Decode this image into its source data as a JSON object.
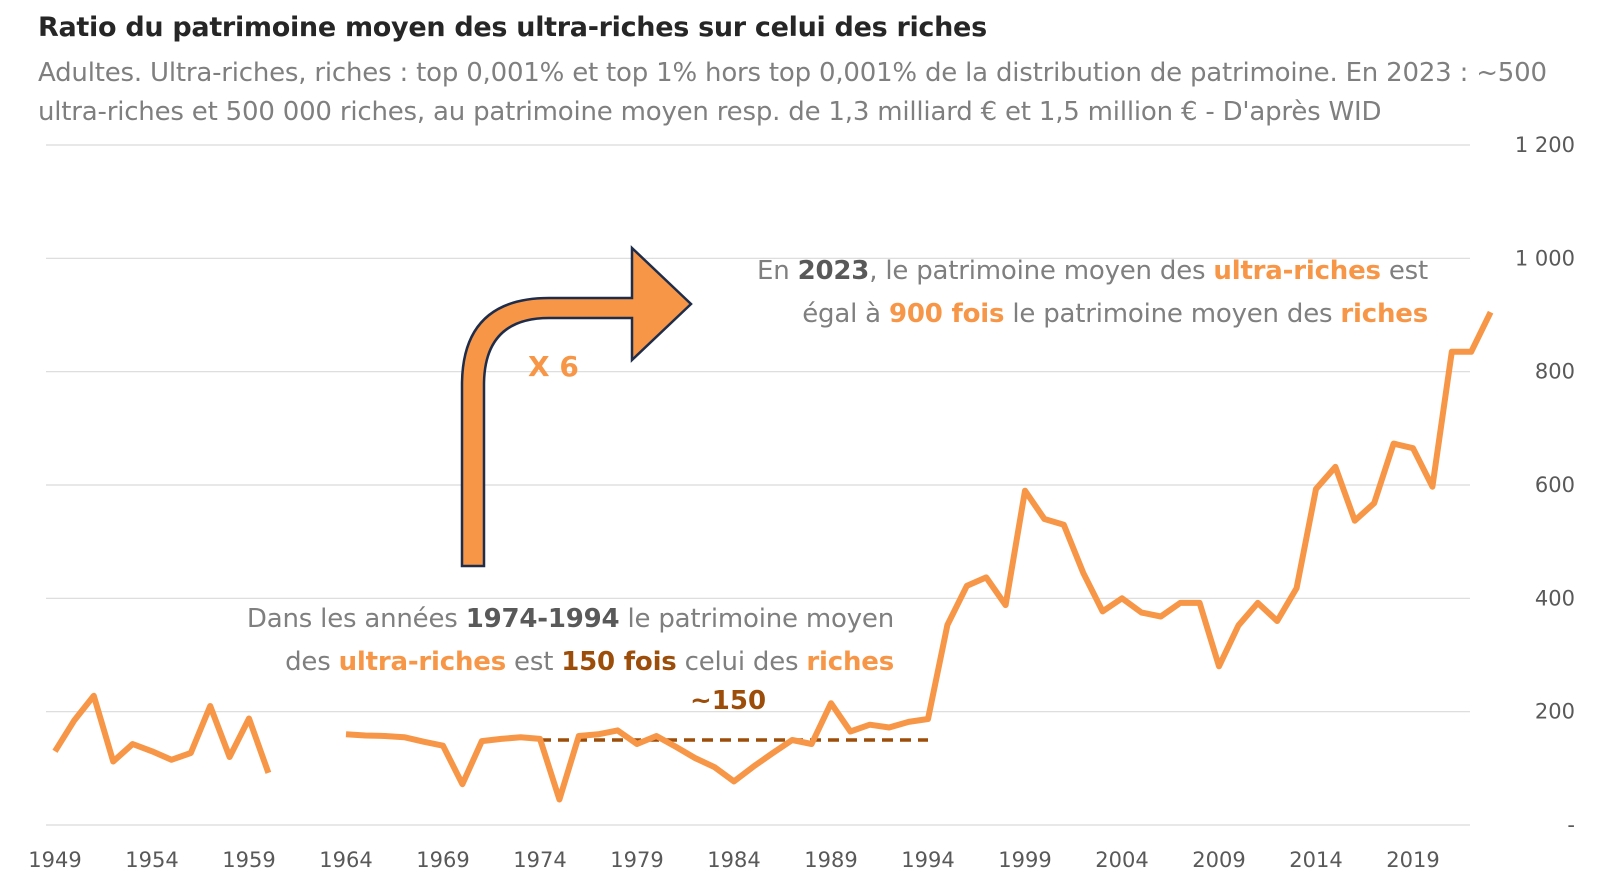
{
  "title": "Ratio du patrimoine moyen des ultra-riches sur celui des riches",
  "subtitle": "Adultes. Ultra-riches, riches : top 0,001% et top 1% hors top 0,001% de la distribution de patrimoine. En 2023 : ~500 ultra-riches et 500 000 riches, au patrimoine moyen resp. de 1,3 milliard € et 1,5 million €  - D'après WID",
  "annotation_top": {
    "p1": "En ",
    "year": "2023",
    "p2": ", le patrimoine moyen des ",
    "ultra": "ultra-riches",
    "p3": " est",
    "p4": "égal à ",
    "fois": "900 fois",
    "p5": " le patrimoine moyen des ",
    "riches": "riches"
  },
  "annotation_bottom": {
    "p1": "Dans les années ",
    "years": "1974-1994",
    "p2": " le patrimoine moyen",
    "p3": "des ",
    "ultra": "ultra-riches",
    "p4": " est ",
    "fois": "150 fois",
    "p5": " celui des ",
    "riches": "riches"
  },
  "approx_label": "~150",
  "multiplier_label": "X 6",
  "colors": {
    "series": "#f79646",
    "reference": "#9c4d0a",
    "grid": "#d9d9d9",
    "arrow_outline": "#1f2d4a"
  },
  "chart_data": {
    "type": "line",
    "y_ticks": [
      "-",
      "200",
      "400",
      "600",
      "800",
      "1 000",
      "1 200"
    ],
    "y_tick_values": [
      0,
      200,
      400,
      600,
      800,
      1000,
      1200
    ],
    "x_ticks": [
      "1949",
      "1954",
      "1959",
      "1964",
      "1969",
      "1974",
      "1979",
      "1984",
      "1989",
      "1994",
      "1999",
      "2004",
      "2009",
      "2014",
      "2019"
    ],
    "xlim": [
      1949,
      2023
    ],
    "ylim": [
      0,
      1200
    ],
    "grid": true,
    "series": [
      {
        "x": [
          1949,
          1950,
          1951,
          1952,
          1953,
          1954,
          1955,
          1956,
          1957,
          1958,
          1959,
          1960,
          1961,
          1962,
          1963,
          1964,
          1965,
          1966,
          1967,
          1968,
          1969,
          1970,
          1971,
          1972,
          1973,
          1974,
          1975,
          1976,
          1977,
          1978,
          1979,
          1980,
          1981,
          1982,
          1983,
          1984,
          1985,
          1986,
          1987,
          1988,
          1989,
          1990,
          1991,
          1992,
          1993,
          1994,
          1995,
          1996,
          1997,
          1998,
          1999,
          2000,
          2001,
          2002,
          2003,
          2004,
          2005,
          2006,
          2007,
          2008,
          2009,
          2010,
          2011,
          2012,
          2013,
          2014,
          2015,
          2016,
          2017,
          2018,
          2019,
          2020,
          2021,
          2022,
          2023
        ],
        "values": [
          130,
          185,
          228,
          112,
          143,
          130,
          115,
          127,
          210,
          120,
          188,
          92,
          null,
          null,
          null,
          160,
          158,
          157,
          155,
          147,
          140,
          72,
          148,
          152,
          155,
          152,
          45,
          157,
          160,
          167,
          143,
          157,
          138,
          118,
          102,
          77,
          103,
          127,
          150,
          143,
          215,
          165,
          177,
          172,
          182,
          187,
          353,
          422,
          437,
          388,
          590,
          540,
          530,
          445,
          377,
          400,
          375,
          368,
          392,
          392,
          280,
          352,
          392,
          360,
          418,
          593,
          632,
          537,
          568,
          673,
          665,
          597,
          835,
          835,
          905
        ]
      }
    ],
    "reference_line": {
      "value": 150,
      "x_start": 1974,
      "x_end": 1994,
      "label": "~150"
    }
  }
}
